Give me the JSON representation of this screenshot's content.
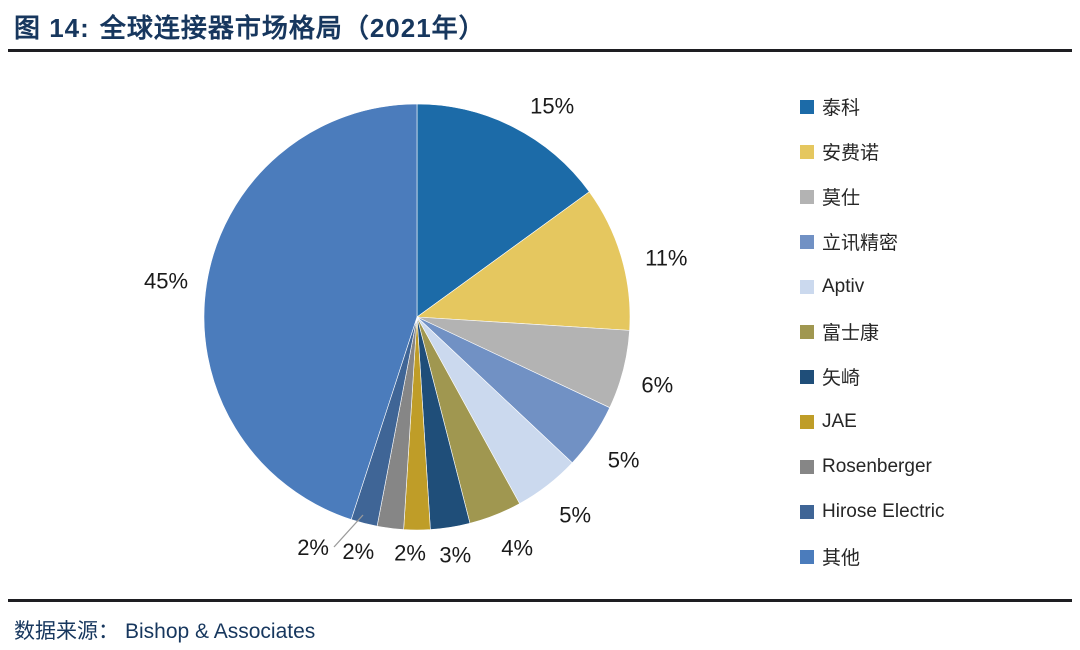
{
  "header": {
    "figure_label": "图 14:",
    "title": "全球连接器市场格局（2021年）"
  },
  "footer": {
    "source_prefix": "数据来源：",
    "source_name": "Bishop & Associates"
  },
  "chart_data": {
    "type": "pie",
    "title": "全球连接器市场格局（2021年）",
    "unit": "%",
    "start_angle_deg": 0,
    "direction": "clockwise",
    "legend_position": "right",
    "labels": [
      "泰科",
      "安费诺",
      "莫仕",
      "立讯精密",
      "Aptiv",
      "富士康",
      "矢崎",
      "JAE",
      "Rosenberger",
      "Hirose Electric",
      "其他"
    ],
    "values": [
      15,
      11,
      6,
      5,
      5,
      4,
      3,
      2,
      2,
      2,
      45
    ],
    "value_labels": [
      "15%",
      "11%",
      "6%",
      "5%",
      "5%",
      "4%",
      "3%",
      "2%",
      "2%",
      "2%",
      "45%"
    ],
    "colors": [
      "#1C6BA8",
      "#E5C75F",
      "#B3B3B3",
      "#7191C4",
      "#CBD9EE",
      "#A09750",
      "#1F4E79",
      "#BF9D28",
      "#868686",
      "#3F6596",
      "#4B7CBC"
    ]
  }
}
